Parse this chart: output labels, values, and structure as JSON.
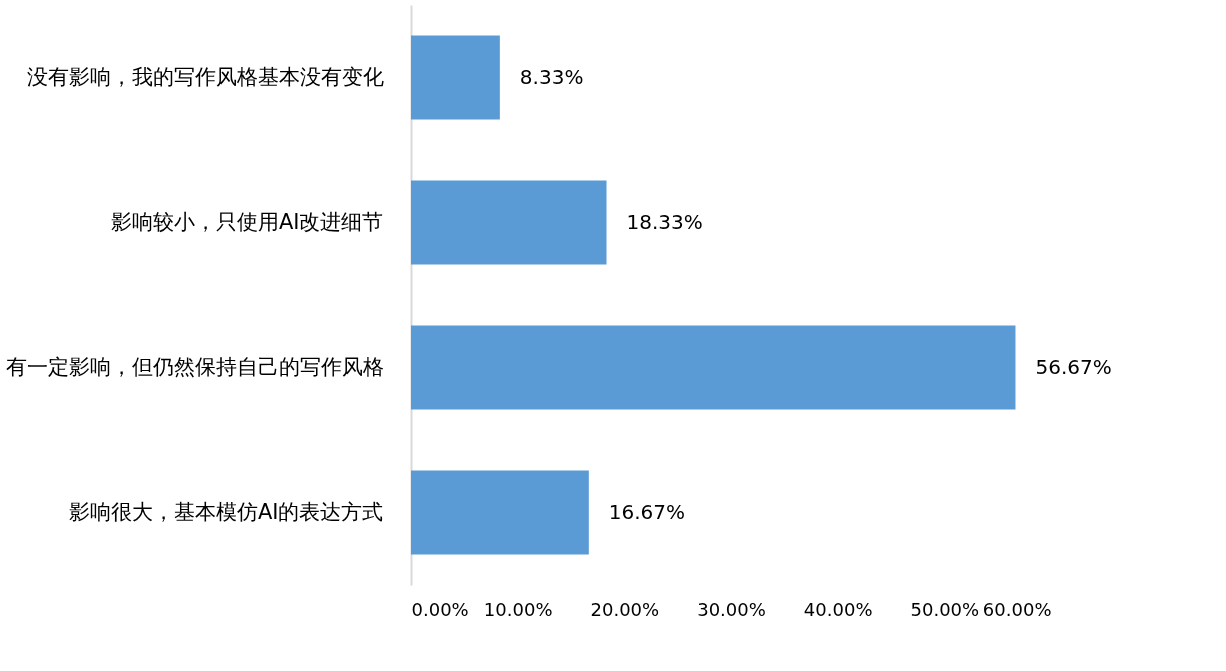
{
  "chart_data": {
    "type": "bar",
    "orientation": "horizontal",
    "categories": [
      "没有影响，我的写作风格基本没有变化",
      "影响较小，只使用AI改进细节",
      "有一定影响，但仍然保持自己的写作风格",
      "影响很大，基本模仿AI的表达方式"
    ],
    "values": [
      8.33,
      18.33,
      56.67,
      16.67
    ],
    "value_labels": [
      "8.33%",
      "18.33%",
      "56.67%",
      "16.67%"
    ],
    "color": "#5b9bd5",
    "xlim": [
      0,
      60
    ],
    "xticks": [
      {
        "value": 0,
        "label": "0.00%"
      },
      {
        "value": 10,
        "label": "10.00%"
      },
      {
        "value": 20,
        "label": "20.00%"
      },
      {
        "value": 30,
        "label": "30.00%"
      },
      {
        "value": 40,
        "label": "40.00%"
      },
      {
        "value": 50,
        "label": "50.00%"
      },
      {
        "value": 60,
        "label": "60.00%"
      }
    ],
    "grid": false
  }
}
